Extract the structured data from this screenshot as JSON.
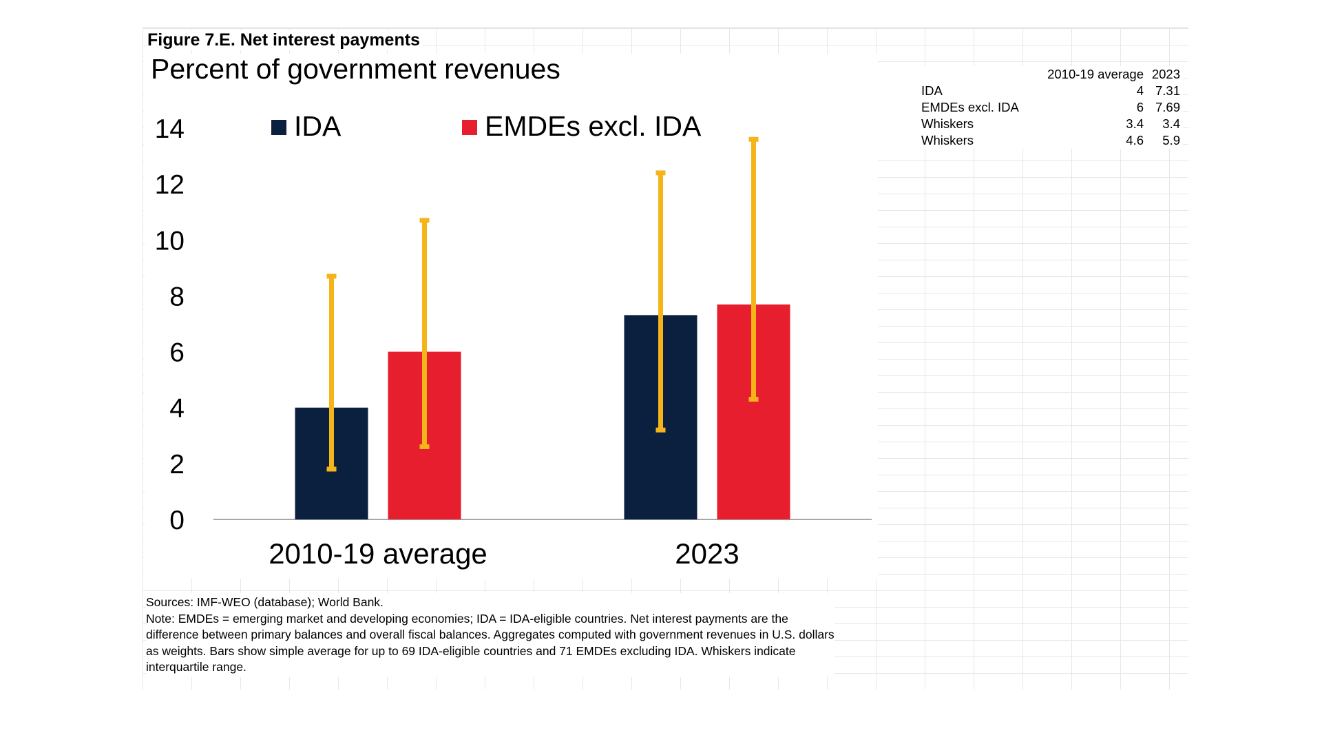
{
  "figure_title": "Figure 7.E. Net interest payments",
  "chart_data": {
    "type": "bar",
    "title": "Percent of government revenues",
    "categories": [
      "2010-19 average",
      "2023"
    ],
    "series": [
      {
        "name": "IDA",
        "values": [
          4,
          7.31
        ],
        "color": "#0b1f3f"
      },
      {
        "name": "EMDEs excl. IDA",
        "values": [
          6,
          7.69
        ],
        "color": "#e61e2d"
      }
    ],
    "whiskers": [
      {
        "series": "IDA",
        "low": [
          1.8,
          3.2
        ],
        "high": [
          8.7,
          12.4
        ]
      },
      {
        "series": "EMDEs excl. IDA",
        "low": [
          2.6,
          4.3
        ],
        "high": [
          10.7,
          13.6
        ]
      }
    ],
    "whisker_color": "#f4b41a",
    "ylim": [
      0,
      14
    ],
    "yticks": [
      "0",
      "2",
      "4",
      "6",
      "8",
      "10",
      "12",
      "14"
    ],
    "legend_position": "top",
    "grid": false
  },
  "table": {
    "headers": [
      "",
      "2010-19 average",
      "2023"
    ],
    "rows": [
      [
        "IDA",
        "4",
        "7.31"
      ],
      [
        "EMDEs excl. IDA",
        "6",
        "7.69"
      ],
      [
        "Whiskers",
        "3.4",
        "3.4"
      ],
      [
        "Whiskers",
        "4.6",
        "5.9"
      ]
    ]
  },
  "notes": {
    "sources": "Sources: IMF-WEO (database); World Bank.",
    "note": "Note: EMDEs = emerging market and developing economies; IDA = IDA-eligible countries. Net interest payments are the difference between primary balances and overall fiscal balances. Aggregates computed with government revenues in U.S. dollars as weights. Bars show simple average for up to 69 IDA-eligible countries and 71 EMDEs excluding IDA. Whiskers indicate interquartile range."
  }
}
